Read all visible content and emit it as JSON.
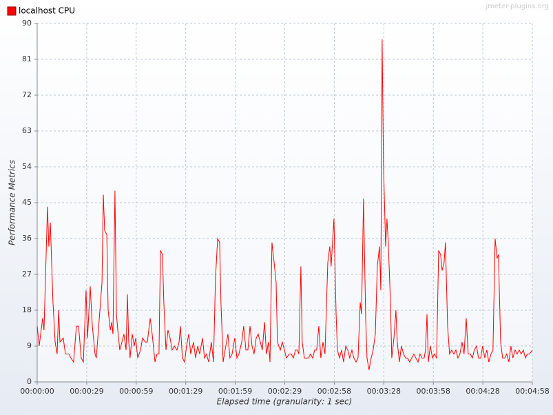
{
  "chart_data": {
    "type": "line",
    "watermark": "jmeter-plugins.org",
    "x_label": "Elapsed time (granularity: 1 sec)",
    "y_label": "Performance Metrics",
    "grid": true,
    "legend": "top-left",
    "xlim": [
      0,
      298
    ],
    "ylim": [
      0,
      90
    ],
    "yticks": [
      0,
      9,
      18,
      27,
      36,
      45,
      54,
      63,
      72,
      81,
      90
    ],
    "xticks": [
      {
        "value": 0,
        "label": "00:00:00"
      },
      {
        "value": 29.8,
        "label": "00:00:29"
      },
      {
        "value": 59.6,
        "label": "00:00:59"
      },
      {
        "value": 89.4,
        "label": "00:01:29"
      },
      {
        "value": 119.2,
        "label": "00:01:59"
      },
      {
        "value": 149,
        "label": "00:02:29"
      },
      {
        "value": 178.8,
        "label": "00:02:58"
      },
      {
        "value": 208.6,
        "label": "00:03:28"
      },
      {
        "value": 238.4,
        "label": "00:03:58"
      },
      {
        "value": 268.2,
        "label": "00:04:28"
      },
      {
        "value": 298,
        "label": "00:04:58"
      }
    ],
    "x": [
      0,
      1.2,
      3.3,
      4.1,
      6.2,
      7.0,
      7.9,
      9.5,
      10.8,
      12.0,
      12.9,
      13.7,
      15.7,
      17.0,
      19.1,
      20.3,
      21.9,
      23.6,
      24.9,
      26.5,
      27.8,
      29.4,
      30.3,
      31.9,
      33.2,
      34.8,
      35.6,
      38.1,
      39.0,
      39.8,
      40.6,
      41.9,
      42.7,
      44.0,
      44.8,
      45.6,
      46.8,
      47.7,
      48.5,
      49.7,
      51.0,
      52.2,
      53.5,
      54.3,
      55.1,
      55.9,
      57.2,
      58.4,
      59.3,
      60.5,
      62.2,
      63.4,
      65.1,
      66.3,
      68.0,
      69.2,
      70.9,
      72.1,
      73.3,
      74.2,
      75.4,
      76.2,
      77.5,
      78.7,
      80.0,
      81.2,
      82.5,
      84.1,
      85.4,
      86.2,
      87.4,
      88.7,
      89.9,
      91.2,
      92.4,
      94.1,
      95.3,
      96.6,
      97.8,
      99.5,
      100.7,
      101.9,
      103.2,
      104.8,
      106.1,
      107.3,
      108.6,
      109.8,
      110.6,
      111.9,
      113.1,
      114.8,
      116.0,
      117.3,
      118.9,
      120.2,
      121.4,
      123.1,
      124.3,
      125.6,
      126.8,
      128.1,
      129.3,
      130.5,
      131.8,
      133.0,
      134.3,
      135.5,
      136.8,
      138.0,
      139.2,
      140.1,
      141.3,
      142.6,
      143.8,
      144.6,
      146.3,
      147.5,
      148.8,
      150.0,
      151.7,
      152.9,
      154.2,
      155.4,
      156.6,
      157.5,
      158.7,
      159.5,
      160.8,
      162.0,
      163.3,
      164.5,
      165.8,
      167.0,
      168.2,
      169.5,
      170.7,
      172.0,
      173.2,
      174.9,
      176.1,
      176.9,
      178.6,
      179.9,
      180.7,
      181.9,
      183.2,
      184.4,
      185.7,
      186.9,
      188.1,
      189.4,
      190.6,
      191.9,
      193.1,
      194.4,
      195.2,
      196.4,
      197.7,
      198.5,
      199.7,
      201.0,
      202.2,
      203.5,
      204.7,
      206.0,
      206.8,
      207.6,
      208.4,
      209.7,
      210.5,
      211.3,
      212.6,
      213.4,
      214.7,
      215.9,
      216.7,
      218.0,
      219.2,
      220.5,
      221.7,
      222.9,
      224.2,
      225.4,
      226.7,
      227.9,
      229.2,
      230.4,
      231.6,
      232.9,
      233.7,
      234.6,
      235.4,
      236.6,
      237.9,
      239.1,
      240.4,
      241.6,
      242.8,
      243.7,
      244.9,
      245.7,
      247.0,
      248.2,
      249.5,
      250.7,
      252.0,
      253.2,
      254.4,
      255.7,
      256.9,
      258.2,
      259.4,
      260.7,
      261.9,
      263.1,
      264.4,
      265.6,
      266.9,
      268.1,
      269.4,
      270.6,
      271.8,
      273.1,
      274.3,
      275.6,
      276.8,
      277.6,
      278.9,
      280.1,
      281.4,
      282.6,
      283.9,
      285.1,
      286.3,
      287.6,
      288.8,
      290.1,
      291.3,
      292.6,
      293.8,
      295.0,
      296.3,
      298.0
    ],
    "series": [
      {
        "name": "localhost CPU",
        "color": "#ff0000",
        "values": [
          14,
          9,
          16,
          13,
          44,
          34,
          40,
          20,
          10,
          7,
          18,
          10,
          11,
          7,
          7,
          6,
          5,
          14,
          14,
          6,
          5,
          23,
          11,
          24,
          14,
          7,
          6,
          20,
          25,
          47,
          38,
          37,
          18,
          13,
          15,
          12,
          48,
          17,
          13,
          8,
          10,
          12,
          8,
          22,
          10,
          6,
          12,
          9,
          11,
          6,
          8,
          11,
          10,
          10,
          16,
          12,
          5,
          7,
          7,
          33,
          32,
          20,
          8,
          13,
          11,
          8,
          9,
          8,
          10,
          14,
          6,
          5,
          9,
          12,
          7,
          10,
          6,
          9,
          7,
          11,
          6,
          7,
          5,
          10,
          5,
          26,
          36,
          35,
          20,
          5,
          8,
          12,
          6,
          7,
          11,
          6,
          7,
          10,
          14,
          8,
          8,
          14,
          9,
          7,
          11,
          12,
          10,
          8,
          15,
          7,
          10,
          5,
          35,
          30,
          25,
          10,
          8,
          10,
          8,
          6,
          7,
          7,
          6,
          8,
          8,
          7,
          29,
          10,
          6,
          6,
          6,
          7,
          6,
          8,
          8,
          14,
          6,
          10,
          7,
          30,
          34,
          29,
          41,
          17,
          8,
          6,
          8,
          5,
          9,
          8,
          6,
          8,
          6,
          5,
          6,
          20,
          17,
          46,
          16,
          6,
          3,
          6,
          8,
          12,
          29,
          34,
          23,
          86,
          55,
          34,
          41,
          35,
          20,
          6,
          11,
          18,
          10,
          5,
          9,
          7,
          6,
          6,
          5,
          6,
          7,
          6,
          5,
          7,
          6,
          6,
          8,
          17,
          5,
          9,
          6,
          7,
          6,
          33,
          32,
          28,
          30,
          35,
          14,
          7,
          8,
          7,
          8,
          6,
          7,
          10,
          7,
          16,
          7,
          7,
          6,
          8,
          9,
          6,
          6,
          9,
          6,
          8,
          5,
          7,
          8,
          36,
          31,
          32,
          10,
          6,
          6,
          7,
          5,
          9,
          6,
          8,
          7,
          8,
          7,
          8,
          6,
          7,
          7,
          8
        ]
      }
    ]
  }
}
